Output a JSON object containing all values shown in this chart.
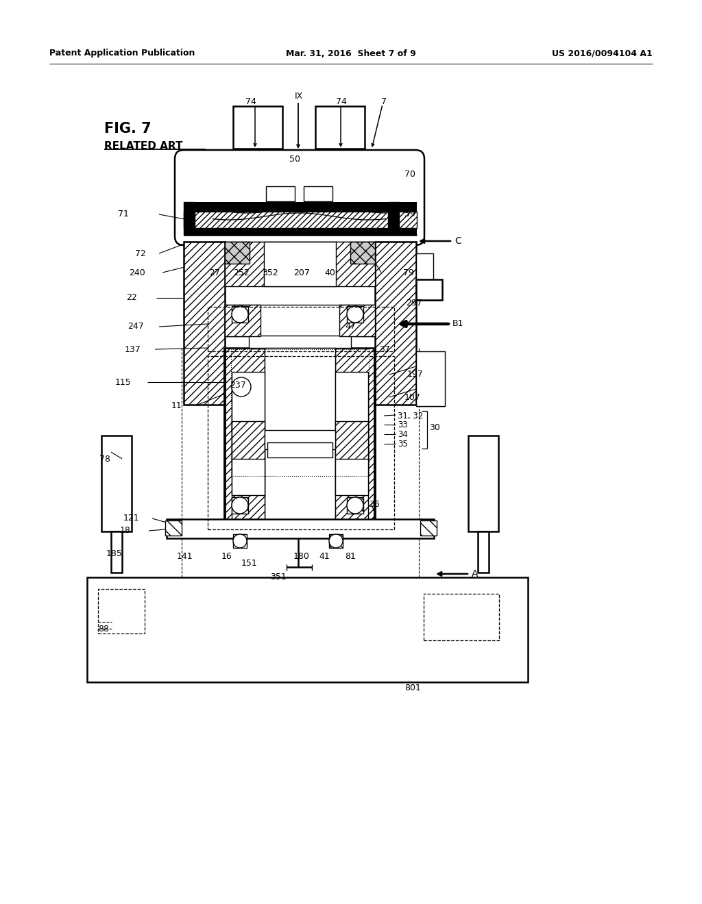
{
  "bg_color": "#ffffff",
  "header_left": "Patent Application Publication",
  "header_mid": "Mar. 31, 2016  Sheet 7 of 9",
  "header_right": "US 2016/0094104 A1",
  "fig_label": "FIG. 7",
  "fig_sublabel": "RELATED ART"
}
